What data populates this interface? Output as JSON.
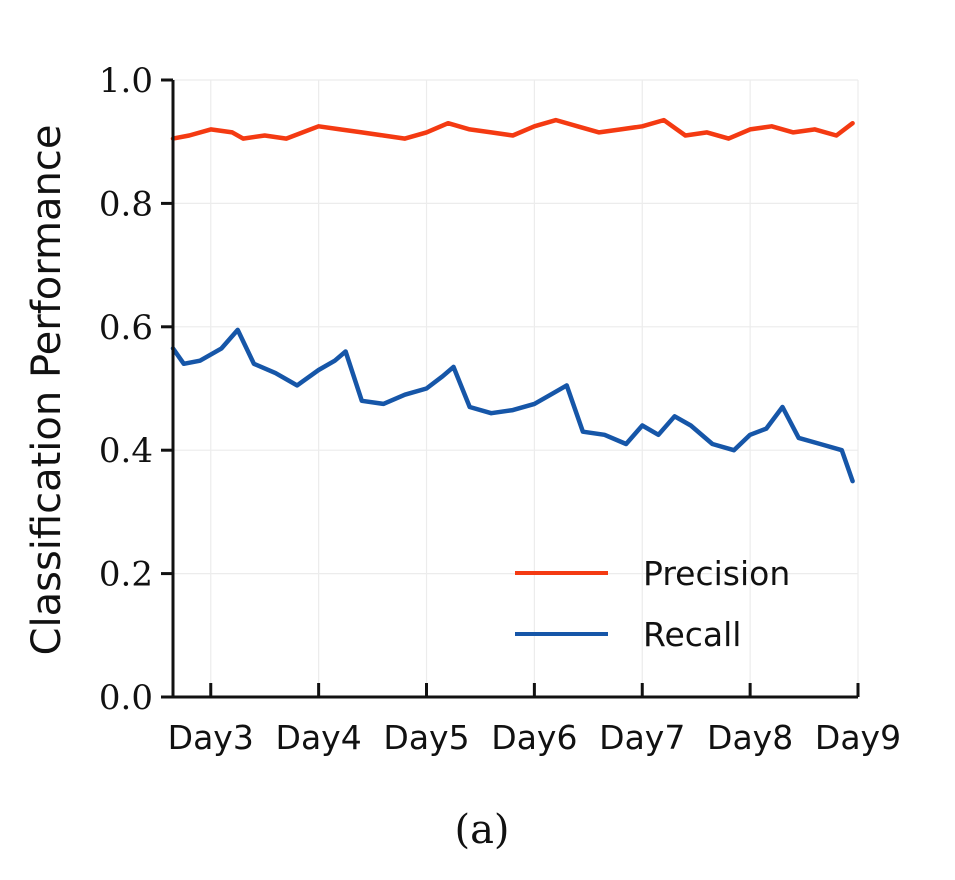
{
  "chart_data": {
    "type": "line",
    "ylabel": "Classification Performance",
    "xlabel": "",
    "caption": "(a)",
    "ylim": [
      0.0,
      1.0
    ],
    "yticks": [
      "0.0",
      "0.2",
      "0.4",
      "0.6",
      "0.8",
      "1.0"
    ],
    "xticks": [
      "Day3",
      "Day4",
      "Day5",
      "Day6",
      "Day7",
      "Day8",
      "Day9"
    ],
    "grid": true,
    "legend_position": "lower-right",
    "series": [
      {
        "name": "Precision",
        "color": "#f43a12",
        "x": [
          2.65,
          2.8,
          3.0,
          3.2,
          3.3,
          3.5,
          3.7,
          4.0,
          4.2,
          4.4,
          4.6,
          4.8,
          5.0,
          5.2,
          5.4,
          5.6,
          5.8,
          6.0,
          6.2,
          6.4,
          6.6,
          6.8,
          7.0,
          7.2,
          7.4,
          7.6,
          7.8,
          8.0,
          8.2,
          8.4,
          8.6,
          8.8,
          8.95
        ],
        "values": [
          0.905,
          0.91,
          0.92,
          0.915,
          0.905,
          0.91,
          0.905,
          0.925,
          0.92,
          0.915,
          0.91,
          0.905,
          0.915,
          0.93,
          0.92,
          0.915,
          0.91,
          0.925,
          0.935,
          0.925,
          0.915,
          0.92,
          0.925,
          0.935,
          0.91,
          0.915,
          0.905,
          0.92,
          0.925,
          0.915,
          0.92,
          0.91,
          0.93
        ]
      },
      {
        "name": "Recall",
        "color": "#1656a8",
        "x": [
          2.65,
          2.75,
          2.9,
          3.1,
          3.25,
          3.4,
          3.6,
          3.8,
          4.0,
          4.15,
          4.25,
          4.4,
          4.6,
          4.8,
          5.0,
          5.15,
          5.25,
          5.4,
          5.6,
          5.8,
          6.0,
          6.15,
          6.3,
          6.45,
          6.65,
          6.85,
          7.0,
          7.15,
          7.3,
          7.45,
          7.65,
          7.85,
          8.0,
          8.15,
          8.3,
          8.45,
          8.65,
          8.85,
          8.95
        ],
        "values": [
          0.565,
          0.54,
          0.545,
          0.565,
          0.595,
          0.54,
          0.525,
          0.505,
          0.53,
          0.545,
          0.56,
          0.48,
          0.475,
          0.49,
          0.5,
          0.52,
          0.535,
          0.47,
          0.46,
          0.465,
          0.475,
          0.49,
          0.505,
          0.43,
          0.425,
          0.41,
          0.44,
          0.425,
          0.455,
          0.44,
          0.41,
          0.4,
          0.425,
          0.435,
          0.47,
          0.42,
          0.41,
          0.4,
          0.35
        ]
      }
    ]
  }
}
